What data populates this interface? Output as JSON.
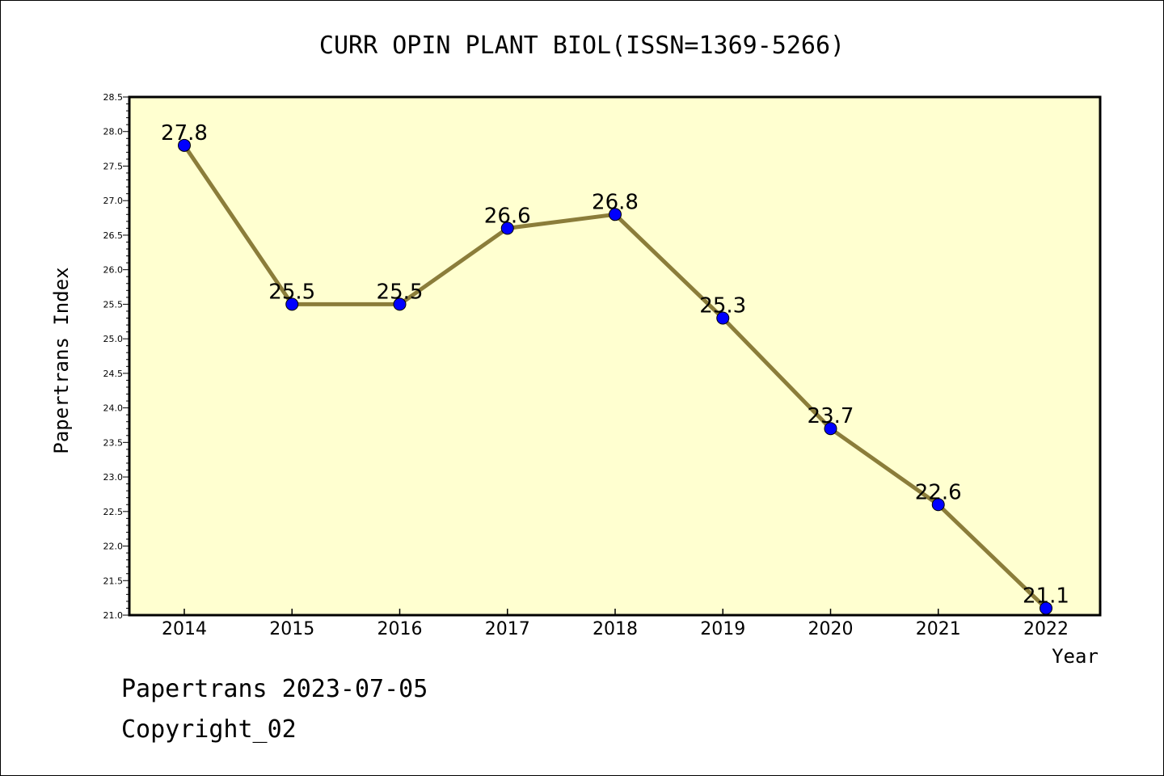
{
  "chart_data": {
    "type": "line",
    "title": "CURR OPIN PLANT BIOL(ISSN=1369-5266)",
    "xlabel": "Year",
    "ylabel": "Papertrans Index",
    "categories": [
      "2014",
      "2015",
      "2016",
      "2017",
      "2018",
      "2019",
      "2020",
      "2021",
      "2022"
    ],
    "series": [
      {
        "values": [
          27.8,
          25.5,
          25.5,
          26.6,
          26.8,
          25.3,
          23.7,
          22.6,
          21.1
        ],
        "labels": [
          "27.8",
          "25.5",
          "25.5",
          "26.6",
          "26.8",
          "25.3",
          "23.7",
          "22.6",
          "21.1"
        ],
        "line_color": "#8b7d3a",
        "marker_color": "#0000ff"
      }
    ],
    "ylim": [
      21.0,
      28.5
    ],
    "yticks": [
      "21.0",
      "21.5",
      "22.0",
      "22.5",
      "23.0",
      "23.5",
      "24.0",
      "24.5",
      "25.0",
      "25.5",
      "26.0",
      "26.5",
      "27.0",
      "27.5",
      "28.0",
      "28.5"
    ],
    "plot_background": "#ffffd0",
    "grid": false,
    "legend": "none"
  },
  "footer": {
    "line1": "Papertrans 2023-07-05",
    "line2": "Copyright_02"
  }
}
